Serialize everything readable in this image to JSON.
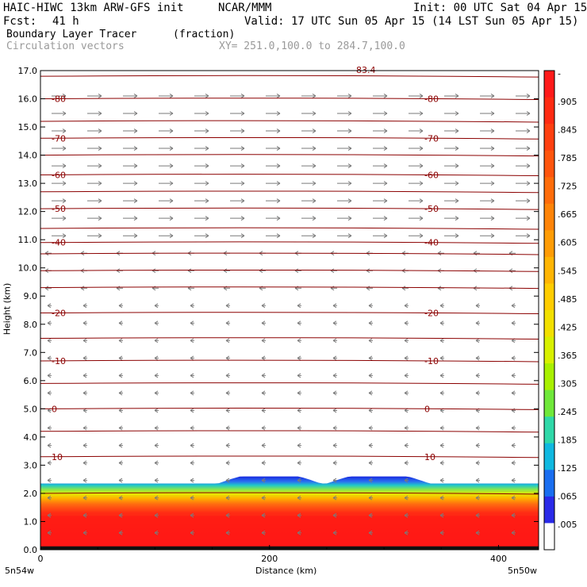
{
  "header": {
    "model": "HAIC-HIWC 13km ARW-GFS init",
    "org": "NCAR/MMM",
    "init": "Init: 00 UTC Sat 04 Apr 15",
    "fcst_label": "Fcst:",
    "fcst_value": "41 h",
    "valid": "Valid: 17 UTC Sun 05 Apr 15 (14 LST Sun 05 Apr 15)",
    "field_name": "Boundary Layer Tracer",
    "field_units": "(fraction)",
    "overlay": "Circulation vectors",
    "xy": "XY= 251.0,100.0 to 284.7,100.0"
  },
  "chart_data": {
    "type": "heatmap",
    "title": "Boundary Layer Tracer",
    "xlabel": "Distance (km)",
    "ylabel": "Height (km)",
    "xlim": [
      0,
      435
    ],
    "ylim": [
      0,
      17
    ],
    "x_ticks": [
      "0",
      "200",
      "400"
    ],
    "x_tick_values": [
      0,
      200,
      400
    ],
    "x_end_labels": [
      "5n54w",
      "5n50w"
    ],
    "y_ticks": [
      "0.0",
      "1.0",
      "2.0",
      "3.0",
      "4.0",
      "5.0",
      "6.0",
      "7.0",
      "8.0",
      "9.0",
      "10.0",
      "11.0",
      "12.0",
      "13.0",
      "14.0",
      "15.0",
      "16.0",
      "17.0"
    ],
    "colorbar": {
      "labels": [
        "-",
        ".905",
        ".845",
        ".785",
        ".725",
        ".665",
        ".605",
        ".545",
        ".485",
        ".425",
        ".365",
        ".305",
        ".245",
        ".185",
        ".125",
        ".065",
        ".005"
      ],
      "colors": [
        "#ff1a1a",
        "#ff2a12",
        "#ff3f10",
        "#ff550d",
        "#ff6c0a",
        "#ff8408",
        "#ff9c05",
        "#ffb503",
        "#ffcd00",
        "#f2e000",
        "#d8f000",
        "#a8f000",
        "#6fe83a",
        "#2fd8a8",
        "#10b8e0",
        "#1a6ef0",
        "#2a2ae8",
        "#ffffff"
      ]
    },
    "temperature_contours": {
      "levels": [
        10,
        0,
        -10,
        -20,
        -40,
        -50,
        -60,
        -70,
        -80
      ],
      "labels": [
        "10",
        "0",
        "-10",
        "-20",
        "-40",
        "-50",
        "-60",
        "-70",
        "-80"
      ],
      "label_heights_km": [
        3.3,
        5.0,
        6.7,
        8.4,
        10.9,
        12.1,
        13.3,
        14.6,
        16.0
      ],
      "top_label": "-83.4"
    },
    "boundary_layer": {
      "top_km": 2.35,
      "bumps": [
        {
          "x_center_km": 200,
          "half_width_km": 45,
          "top_km": 2.6
        },
        {
          "x_center_km": 295,
          "half_width_km": 45,
          "top_km": 2.6
        }
      ]
    }
  }
}
